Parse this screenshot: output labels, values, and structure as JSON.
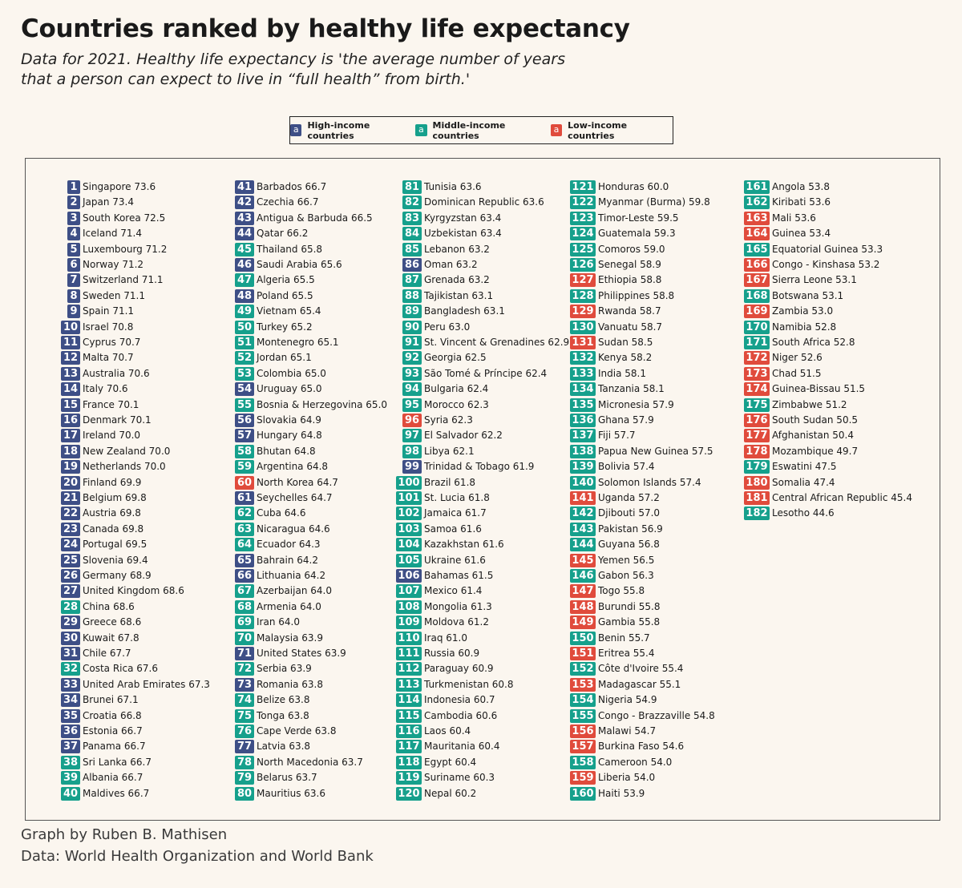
{
  "title": "Countries ranked by healthy life expectancy",
  "subtitle": "Data for 2021. Healthy life expectancy is 'the average number of years that a person can expect to live in “full health” from birth.'",
  "legend": {
    "badge_letter": "a",
    "high": "High-income countries",
    "middle": "Middle-income countries",
    "low": "Low-income countries"
  },
  "colors": {
    "high": "#3e4f86",
    "middle": "#16a08c",
    "low": "#e04b3c"
  },
  "footer": {
    "graph_by": "Graph by Ruben B. Mathisen",
    "data_source": "Data: World Health Organization and World Bank"
  },
  "chart_data": {
    "type": "table",
    "title": "Countries ranked by healthy life expectancy",
    "columns": [
      "rank",
      "country",
      "healthy_life_expectancy",
      "income_group"
    ],
    "rows": [
      [
        1,
        "Singapore",
        73.6,
        "high"
      ],
      [
        2,
        "Japan",
        73.4,
        "high"
      ],
      [
        3,
        "South Korea",
        72.5,
        "high"
      ],
      [
        4,
        "Iceland",
        71.4,
        "high"
      ],
      [
        5,
        "Luxembourg",
        71.2,
        "high"
      ],
      [
        6,
        "Norway",
        71.2,
        "high"
      ],
      [
        7,
        "Switzerland",
        71.1,
        "high"
      ],
      [
        8,
        "Sweden",
        71.1,
        "high"
      ],
      [
        9,
        "Spain",
        71.1,
        "high"
      ],
      [
        10,
        "Israel",
        70.8,
        "high"
      ],
      [
        11,
        "Cyprus",
        70.7,
        "high"
      ],
      [
        12,
        "Malta",
        70.7,
        "high"
      ],
      [
        13,
        "Australia",
        70.6,
        "high"
      ],
      [
        14,
        "Italy",
        70.6,
        "high"
      ],
      [
        15,
        "France",
        70.1,
        "high"
      ],
      [
        16,
        "Denmark",
        70.1,
        "high"
      ],
      [
        17,
        "Ireland",
        70.0,
        "high"
      ],
      [
        18,
        "New Zealand",
        70.0,
        "high"
      ],
      [
        19,
        "Netherlands",
        70.0,
        "high"
      ],
      [
        20,
        "Finland",
        69.9,
        "high"
      ],
      [
        21,
        "Belgium",
        69.8,
        "high"
      ],
      [
        22,
        "Austria",
        69.8,
        "high"
      ],
      [
        23,
        "Canada",
        69.8,
        "high"
      ],
      [
        24,
        "Portugal",
        69.5,
        "high"
      ],
      [
        25,
        "Slovenia",
        69.4,
        "high"
      ],
      [
        26,
        "Germany",
        68.9,
        "high"
      ],
      [
        27,
        "United Kingdom",
        68.6,
        "high"
      ],
      [
        28,
        "China",
        68.6,
        "middle"
      ],
      [
        29,
        "Greece",
        68.6,
        "high"
      ],
      [
        30,
        "Kuwait",
        67.8,
        "high"
      ],
      [
        31,
        "Chile",
        67.7,
        "high"
      ],
      [
        32,
        "Costa Rica",
        67.6,
        "middle"
      ],
      [
        33,
        "United Arab Emirates",
        67.3,
        "high"
      ],
      [
        34,
        "Brunei",
        67.1,
        "high"
      ],
      [
        35,
        "Croatia",
        66.8,
        "high"
      ],
      [
        36,
        "Estonia",
        66.7,
        "high"
      ],
      [
        37,
        "Panama",
        66.7,
        "high"
      ],
      [
        38,
        "Sri Lanka",
        66.7,
        "middle"
      ],
      [
        39,
        "Albania",
        66.7,
        "middle"
      ],
      [
        40,
        "Maldives",
        66.7,
        "middle"
      ],
      [
        41,
        "Barbados",
        66.7,
        "high"
      ],
      [
        42,
        "Czechia",
        66.7,
        "high"
      ],
      [
        43,
        "Antigua & Barbuda",
        66.5,
        "high"
      ],
      [
        44,
        "Qatar",
        66.2,
        "high"
      ],
      [
        45,
        "Thailand",
        65.8,
        "middle"
      ],
      [
        46,
        "Saudi Arabia",
        65.6,
        "high"
      ],
      [
        47,
        "Algeria",
        65.5,
        "middle"
      ],
      [
        48,
        "Poland",
        65.5,
        "high"
      ],
      [
        49,
        "Vietnam",
        65.4,
        "middle"
      ],
      [
        50,
        "Turkey",
        65.2,
        "middle"
      ],
      [
        51,
        "Montenegro",
        65.1,
        "middle"
      ],
      [
        52,
        "Jordan",
        65.1,
        "middle"
      ],
      [
        53,
        "Colombia",
        65.0,
        "middle"
      ],
      [
        54,
        "Uruguay",
        65.0,
        "high"
      ],
      [
        55,
        "Bosnia & Herzegovina",
        65.0,
        "middle"
      ],
      [
        56,
        "Slovakia",
        64.9,
        "high"
      ],
      [
        57,
        "Hungary",
        64.8,
        "high"
      ],
      [
        58,
        "Bhutan",
        64.8,
        "middle"
      ],
      [
        59,
        "Argentina",
        64.8,
        "middle"
      ],
      [
        60,
        "North Korea",
        64.7,
        "low"
      ],
      [
        61,
        "Seychelles",
        64.7,
        "high"
      ],
      [
        62,
        "Cuba",
        64.6,
        "middle"
      ],
      [
        63,
        "Nicaragua",
        64.6,
        "middle"
      ],
      [
        64,
        "Ecuador",
        64.3,
        "middle"
      ],
      [
        65,
        "Bahrain",
        64.2,
        "high"
      ],
      [
        66,
        "Lithuania",
        64.2,
        "high"
      ],
      [
        67,
        "Azerbaijan",
        64.0,
        "middle"
      ],
      [
        68,
        "Armenia",
        64.0,
        "middle"
      ],
      [
        69,
        "Iran",
        64.0,
        "middle"
      ],
      [
        70,
        "Malaysia",
        63.9,
        "middle"
      ],
      [
        71,
        "United States",
        63.9,
        "high"
      ],
      [
        72,
        "Serbia",
        63.9,
        "middle"
      ],
      [
        73,
        "Romania",
        63.8,
        "high"
      ],
      [
        74,
        "Belize",
        63.8,
        "middle"
      ],
      [
        75,
        "Tonga",
        63.8,
        "middle"
      ],
      [
        76,
        "Cape Verde",
        63.8,
        "middle"
      ],
      [
        77,
        "Latvia",
        63.8,
        "high"
      ],
      [
        78,
        "North Macedonia",
        63.7,
        "middle"
      ],
      [
        79,
        "Belarus",
        63.7,
        "middle"
      ],
      [
        80,
        "Mauritius",
        63.6,
        "middle"
      ],
      [
        81,
        "Tunisia",
        63.6,
        "middle"
      ],
      [
        82,
        "Dominican Republic",
        63.6,
        "middle"
      ],
      [
        83,
        "Kyrgyzstan",
        63.4,
        "middle"
      ],
      [
        84,
        "Uzbekistan",
        63.4,
        "middle"
      ],
      [
        85,
        "Lebanon",
        63.2,
        "middle"
      ],
      [
        86,
        "Oman",
        63.2,
        "high"
      ],
      [
        87,
        "Grenada",
        63.2,
        "middle"
      ],
      [
        88,
        "Tajikistan",
        63.1,
        "middle"
      ],
      [
        89,
        "Bangladesh",
        63.1,
        "middle"
      ],
      [
        90,
        "Peru",
        63.0,
        "middle"
      ],
      [
        91,
        "St. Vincent & Grenadines",
        62.9,
        "middle"
      ],
      [
        92,
        "Georgia",
        62.5,
        "middle"
      ],
      [
        93,
        "São Tomé & Príncipe",
        62.4,
        "middle"
      ],
      [
        94,
        "Bulgaria",
        62.4,
        "middle"
      ],
      [
        95,
        "Morocco",
        62.3,
        "middle"
      ],
      [
        96,
        "Syria",
        62.3,
        "low"
      ],
      [
        97,
        "El Salvador",
        62.2,
        "middle"
      ],
      [
        98,
        "Libya",
        62.1,
        "middle"
      ],
      [
        99,
        "Trinidad & Tobago",
        61.9,
        "high"
      ],
      [
        100,
        "Brazil",
        61.8,
        "middle"
      ],
      [
        101,
        "St. Lucia",
        61.8,
        "middle"
      ],
      [
        102,
        "Jamaica",
        61.7,
        "middle"
      ],
      [
        103,
        "Samoa",
        61.6,
        "middle"
      ],
      [
        104,
        "Kazakhstan",
        61.6,
        "middle"
      ],
      [
        105,
        "Ukraine",
        61.6,
        "middle"
      ],
      [
        106,
        "Bahamas",
        61.5,
        "high"
      ],
      [
        107,
        "Mexico",
        61.4,
        "middle"
      ],
      [
        108,
        "Mongolia",
        61.3,
        "middle"
      ],
      [
        109,
        "Moldova",
        61.2,
        "middle"
      ],
      [
        110,
        "Iraq",
        61.0,
        "middle"
      ],
      [
        111,
        "Russia",
        60.9,
        "middle"
      ],
      [
        112,
        "Paraguay",
        60.9,
        "middle"
      ],
      [
        113,
        "Turkmenistan",
        60.8,
        "middle"
      ],
      [
        114,
        "Indonesia",
        60.7,
        "middle"
      ],
      [
        115,
        "Cambodia",
        60.6,
        "middle"
      ],
      [
        116,
        "Laos",
        60.4,
        "middle"
      ],
      [
        117,
        "Mauritania",
        60.4,
        "middle"
      ],
      [
        118,
        "Egypt",
        60.4,
        "middle"
      ],
      [
        119,
        "Suriname",
        60.3,
        "middle"
      ],
      [
        120,
        "Nepal",
        60.2,
        "middle"
      ],
      [
        121,
        "Honduras",
        60.0,
        "middle"
      ],
      [
        122,
        "Myanmar (Burma)",
        59.8,
        "middle"
      ],
      [
        123,
        "Timor-Leste",
        59.5,
        "middle"
      ],
      [
        124,
        "Guatemala",
        59.3,
        "middle"
      ],
      [
        125,
        "Comoros",
        59.0,
        "middle"
      ],
      [
        126,
        "Senegal",
        58.9,
        "middle"
      ],
      [
        127,
        "Ethiopia",
        58.8,
        "low"
      ],
      [
        128,
        "Philippines",
        58.8,
        "middle"
      ],
      [
        129,
        "Rwanda",
        58.7,
        "low"
      ],
      [
        130,
        "Vanuatu",
        58.7,
        "middle"
      ],
      [
        131,
        "Sudan",
        58.5,
        "low"
      ],
      [
        132,
        "Kenya",
        58.2,
        "middle"
      ],
      [
        133,
        "India",
        58.1,
        "middle"
      ],
      [
        134,
        "Tanzania",
        58.1,
        "middle"
      ],
      [
        135,
        "Micronesia",
        57.9,
        "middle"
      ],
      [
        136,
        "Ghana",
        57.9,
        "middle"
      ],
      [
        137,
        "Fiji",
        57.7,
        "middle"
      ],
      [
        138,
        "Papua New Guinea",
        57.5,
        "middle"
      ],
      [
        139,
        "Bolivia",
        57.4,
        "middle"
      ],
      [
        140,
        "Solomon Islands",
        57.4,
        "middle"
      ],
      [
        141,
        "Uganda",
        57.2,
        "low"
      ],
      [
        142,
        "Djibouti",
        57.0,
        "middle"
      ],
      [
        143,
        "Pakistan",
        56.9,
        "middle"
      ],
      [
        144,
        "Guyana",
        56.8,
        "middle"
      ],
      [
        145,
        "Yemen",
        56.5,
        "low"
      ],
      [
        146,
        "Gabon",
        56.3,
        "middle"
      ],
      [
        147,
        "Togo",
        55.8,
        "low"
      ],
      [
        148,
        "Burundi",
        55.8,
        "low"
      ],
      [
        149,
        "Gambia",
        55.8,
        "low"
      ],
      [
        150,
        "Benin",
        55.7,
        "middle"
      ],
      [
        151,
        "Eritrea",
        55.4,
        "low"
      ],
      [
        152,
        "Côte d'Ivoire",
        55.4,
        "middle"
      ],
      [
        153,
        "Madagascar",
        55.1,
        "low"
      ],
      [
        154,
        "Nigeria",
        54.9,
        "middle"
      ],
      [
        155,
        "Congo - Brazzaville",
        54.8,
        "middle"
      ],
      [
        156,
        "Malawi",
        54.7,
        "low"
      ],
      [
        157,
        "Burkina Faso",
        54.6,
        "low"
      ],
      [
        158,
        "Cameroon",
        54.0,
        "middle"
      ],
      [
        159,
        "Liberia",
        54.0,
        "low"
      ],
      [
        160,
        "Haiti",
        53.9,
        "middle"
      ],
      [
        161,
        "Angola",
        53.8,
        "middle"
      ],
      [
        162,
        "Kiribati",
        53.6,
        "middle"
      ],
      [
        163,
        "Mali",
        53.6,
        "low"
      ],
      [
        164,
        "Guinea",
        53.4,
        "low"
      ],
      [
        165,
        "Equatorial Guinea",
        53.3,
        "middle"
      ],
      [
        166,
        "Congo - Kinshasa",
        53.2,
        "low"
      ],
      [
        167,
        "Sierra Leone",
        53.1,
        "low"
      ],
      [
        168,
        "Botswana",
        53.1,
        "middle"
      ],
      [
        169,
        "Zambia",
        53.0,
        "low"
      ],
      [
        170,
        "Namibia",
        52.8,
        "middle"
      ],
      [
        171,
        "South Africa",
        52.8,
        "middle"
      ],
      [
        172,
        "Niger",
        52.6,
        "low"
      ],
      [
        173,
        "Chad",
        51.5,
        "low"
      ],
      [
        174,
        "Guinea-Bissau",
        51.5,
        "low"
      ],
      [
        175,
        "Zimbabwe",
        51.2,
        "middle"
      ],
      [
        176,
        "South Sudan",
        50.5,
        "low"
      ],
      [
        177,
        "Afghanistan",
        50.4,
        "low"
      ],
      [
        178,
        "Mozambique",
        49.7,
        "low"
      ],
      [
        179,
        "Eswatini",
        47.5,
        "middle"
      ],
      [
        180,
        "Somalia",
        47.4,
        "low"
      ],
      [
        181,
        "Central African Republic",
        45.4,
        "low"
      ],
      [
        182,
        "Lesotho",
        44.6,
        "middle"
      ]
    ]
  }
}
